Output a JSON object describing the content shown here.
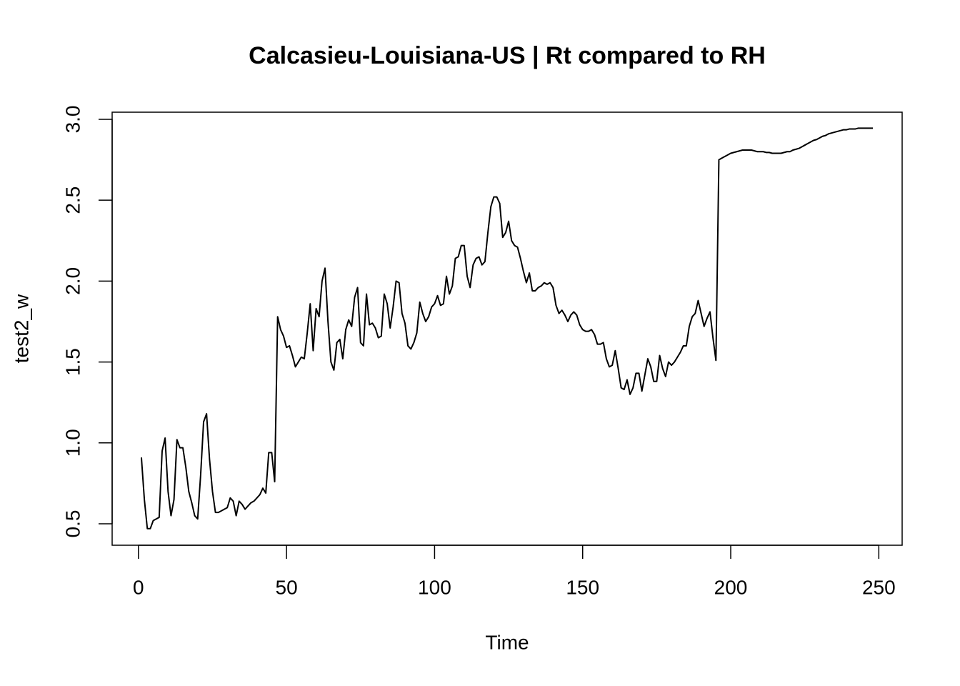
{
  "chart_data": {
    "type": "line",
    "title": "Calcasieu-Louisiana-US | Rt compared to RH",
    "x_label": "Time",
    "y_label": "test2_w",
    "xlim": [
      -8.88,
      257.88
    ],
    "ylim": [
      0.3675,
      3.044
    ],
    "xticks": [
      0,
      50,
      100,
      150,
      200,
      250
    ],
    "yticks": [
      0.5,
      {
        "value": 1.0,
        "label": "1.0"
      },
      1.5,
      {
        "value": 2.0,
        "label": "2.0"
      },
      2.5,
      {
        "value": 3.0,
        "label": "3.0"
      }
    ],
    "grid": false,
    "series": [
      {
        "name": "test2_w",
        "color": "#000000",
        "x": [
          1,
          2,
          3,
          4,
          5,
          6,
          7,
          8,
          9,
          10,
          11,
          12,
          13,
          14,
          15,
          16,
          17,
          18,
          19,
          20,
          21,
          22,
          23,
          24,
          25,
          26,
          27,
          28,
          29,
          30,
          31,
          32,
          33,
          34,
          35,
          36,
          37,
          38,
          39,
          40,
          41,
          42,
          43,
          44,
          45,
          46,
          47,
          48,
          49,
          50,
          51,
          52,
          53,
          54,
          55,
          56,
          57,
          58,
          59,
          60,
          61,
          62,
          63,
          64,
          65,
          66,
          67,
          68,
          69,
          70,
          71,
          72,
          73,
          74,
          75,
          76,
          77,
          78,
          79,
          80,
          81,
          82,
          83,
          84,
          85,
          86,
          87,
          88,
          89,
          90,
          91,
          92,
          93,
          94,
          95,
          96,
          97,
          98,
          99,
          100,
          101,
          102,
          103,
          104,
          105,
          106,
          107,
          108,
          109,
          110,
          111,
          112,
          113,
          114,
          115,
          116,
          117,
          118,
          119,
          120,
          121,
          122,
          123,
          124,
          125,
          126,
          127,
          128,
          129,
          130,
          131,
          132,
          133,
          134,
          135,
          136,
          137,
          138,
          139,
          140,
          141,
          142,
          143,
          144,
          145,
          146,
          147,
          148,
          149,
          150,
          151,
          152,
          153,
          154,
          155,
          156,
          157,
          158,
          159,
          160,
          161,
          162,
          163,
          164,
          165,
          166,
          167,
          168,
          169,
          170,
          171,
          172,
          173,
          174,
          175,
          176,
          177,
          178,
          179,
          180,
          181,
          182,
          183,
          184,
          185,
          186,
          187,
          188,
          189,
          190,
          191,
          192,
          193,
          194,
          195,
          196,
          197,
          198,
          199,
          200,
          201,
          202,
          203,
          204,
          205,
          206,
          207,
          208,
          209,
          210,
          211,
          212,
          213,
          214,
          215,
          216,
          217,
          218,
          219,
          220,
          221,
          222,
          223,
          224,
          225,
          226,
          227,
          228,
          229,
          230,
          231,
          232,
          233,
          234,
          235,
          236,
          237,
          238,
          239,
          240,
          241,
          242,
          243,
          244,
          245,
          246,
          247,
          248
        ],
        "values": [
          0.91,
          0.65,
          0.47,
          0.47,
          0.52,
          0.53,
          0.54,
          0.95,
          1.03,
          0.7,
          0.55,
          0.65,
          1.02,
          0.97,
          0.97,
          0.85,
          0.7,
          0.63,
          0.55,
          0.53,
          0.8,
          1.13,
          1.18,
          0.9,
          0.7,
          0.57,
          0.57,
          0.58,
          0.59,
          0.6,
          0.66,
          0.64,
          0.55,
          0.64,
          0.62,
          0.59,
          0.61,
          0.63,
          0.64,
          0.66,
          0.68,
          0.72,
          0.69,
          0.94,
          0.94,
          0.76,
          1.78,
          1.7,
          1.66,
          1.59,
          1.6,
          1.54,
          1.47,
          1.5,
          1.53,
          1.52,
          1.68,
          1.86,
          1.57,
          1.83,
          1.78,
          2.0,
          2.08,
          1.75,
          1.5,
          1.45,
          1.62,
          1.64,
          1.52,
          1.7,
          1.76,
          1.72,
          1.9,
          1.96,
          1.62,
          1.6,
          1.92,
          1.73,
          1.74,
          1.71,
          1.65,
          1.66,
          1.92,
          1.86,
          1.71,
          1.84,
          2.0,
          1.99,
          1.8,
          1.74,
          1.6,
          1.58,
          1.62,
          1.68,
          1.87,
          1.8,
          1.75,
          1.78,
          1.84,
          1.86,
          1.91,
          1.85,
          1.86,
          2.03,
          1.92,
          1.97,
          2.14,
          2.15,
          2.22,
          2.22,
          2.03,
          1.96,
          2.1,
          2.14,
          2.15,
          2.1,
          2.12,
          2.3,
          2.46,
          2.52,
          2.52,
          2.48,
          2.27,
          2.3,
          2.37,
          2.25,
          2.22,
          2.21,
          2.14,
          2.06,
          1.99,
          2.05,
          1.94,
          1.94,
          1.96,
          1.97,
          1.99,
          1.98,
          1.99,
          1.96,
          1.85,
          1.8,
          1.82,
          1.79,
          1.75,
          1.79,
          1.81,
          1.79,
          1.73,
          1.7,
          1.69,
          1.69,
          1.7,
          1.67,
          1.61,
          1.61,
          1.62,
          1.52,
          1.47,
          1.48,
          1.57,
          1.46,
          1.34,
          1.33,
          1.39,
          1.3,
          1.34,
          1.43,
          1.43,
          1.32,
          1.42,
          1.52,
          1.47,
          1.38,
          1.38,
          1.54,
          1.46,
          1.41,
          1.5,
          1.48,
          1.5,
          1.53,
          1.56,
          1.6,
          1.6,
          1.72,
          1.78,
          1.8,
          1.88,
          1.8,
          1.72,
          1.77,
          1.81,
          1.65,
          1.51,
          2.75,
          2.76,
          2.77,
          2.78,
          2.79,
          2.795,
          2.8,
          2.805,
          2.81,
          2.81,
          2.81,
          2.81,
          2.805,
          2.8,
          2.8,
          2.8,
          2.795,
          2.795,
          2.79,
          2.79,
          2.79,
          2.79,
          2.795,
          2.8,
          2.8,
          2.81,
          2.815,
          2.82,
          2.83,
          2.84,
          2.85,
          2.86,
          2.87,
          2.875,
          2.885,
          2.895,
          2.9,
          2.91,
          2.915,
          2.92,
          2.925,
          2.93,
          2.935,
          2.935,
          2.94,
          2.94,
          2.94,
          2.945,
          2.945,
          2.945,
          2.945,
          2.945,
          2.945
        ]
      }
    ]
  }
}
